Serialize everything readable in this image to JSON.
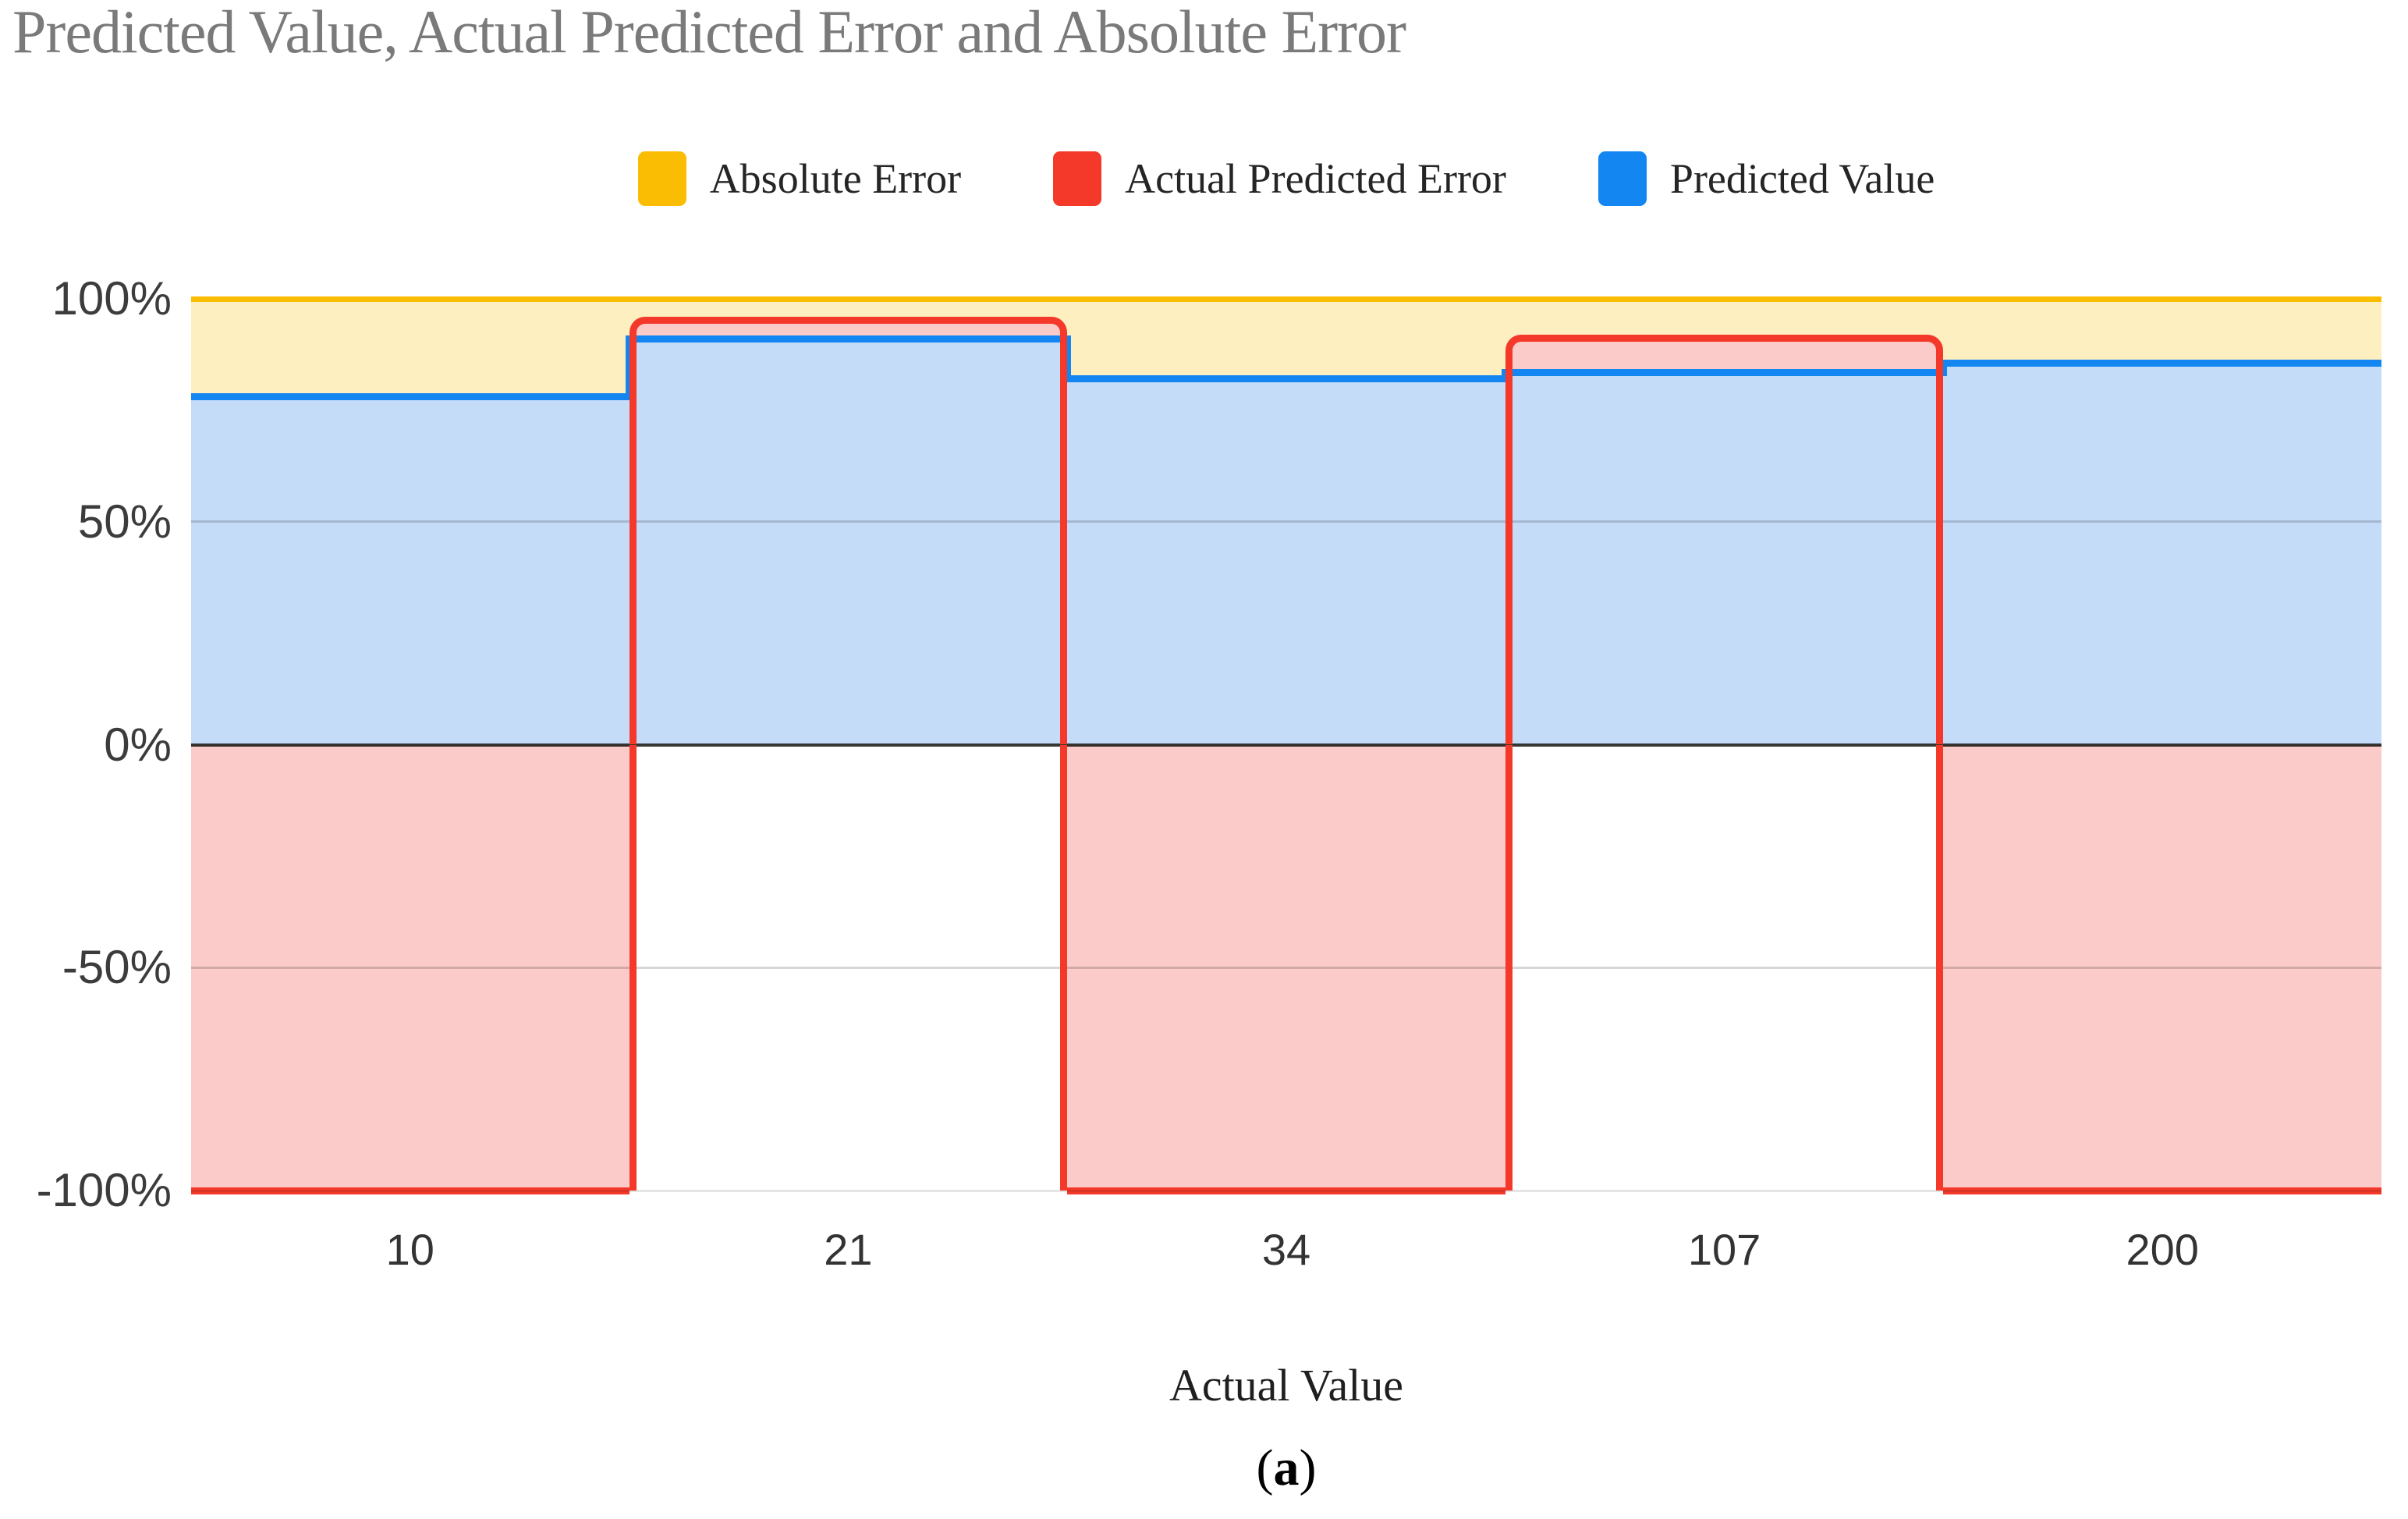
{
  "title": "Predicted Value, Actual Predicted Error and Absolute Error",
  "legend": {
    "items": [
      {
        "label": "Absolute Error",
        "color": "#FBBC04"
      },
      {
        "label": "Actual Predicted Error",
        "color": "#F4392B"
      },
      {
        "label": "Predicted Value",
        "color": "#1386F2"
      }
    ]
  },
  "axes": {
    "x_label": "Actual Value",
    "y_ticks": [
      {
        "label": "100%",
        "value": 100
      },
      {
        "label": "50%",
        "value": 50
      },
      {
        "label": "0%",
        "value": 0
      },
      {
        "label": "-50%",
        "value": -50
      },
      {
        "label": "-100%",
        "value": -100
      }
    ]
  },
  "caption": {
    "open": "(",
    "letter": "a",
    "close": ")"
  },
  "chart_data": {
    "type": "area",
    "stepped": true,
    "title": "Predicted Value, Actual Predicted Error and Absolute Error",
    "xlabel": "Actual Value",
    "ylabel": "",
    "ylim": [
      -100,
      100
    ],
    "y_tick_labels": [
      "100%",
      "50%",
      "0%",
      "-50%",
      "-100%"
    ],
    "legend_position": "top",
    "grid": true,
    "categories": [
      "10",
      "21",
      "34",
      "107",
      "200"
    ],
    "series": [
      {
        "name": "Absolute Error",
        "color": "#FBBC04",
        "fill": "#FDEFC0",
        "values": [
          100,
          100,
          100,
          100,
          100
        ]
      },
      {
        "name": "Actual Predicted Error",
        "color": "#F4392B",
        "fill": "#FACBC9",
        "values": [
          -100,
          96,
          -100,
          92,
          -100
        ]
      },
      {
        "name": "Predicted Value",
        "color": "#1386F2",
        "fill": "#C5DCF9",
        "values": [
          78,
          91,
          82,
          83.5,
          85.5
        ]
      }
    ]
  }
}
